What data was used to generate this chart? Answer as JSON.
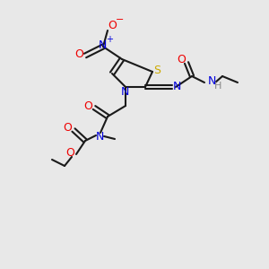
{
  "bg_color": "#e8e8e8",
  "atom_colors": {
    "C": "#000000",
    "N": "#0000dd",
    "O": "#ee0000",
    "S": "#ccaa00",
    "H": "#888888"
  },
  "bond_color": "#1a1a1a",
  "line_width": 1.5,
  "font_size": 9
}
